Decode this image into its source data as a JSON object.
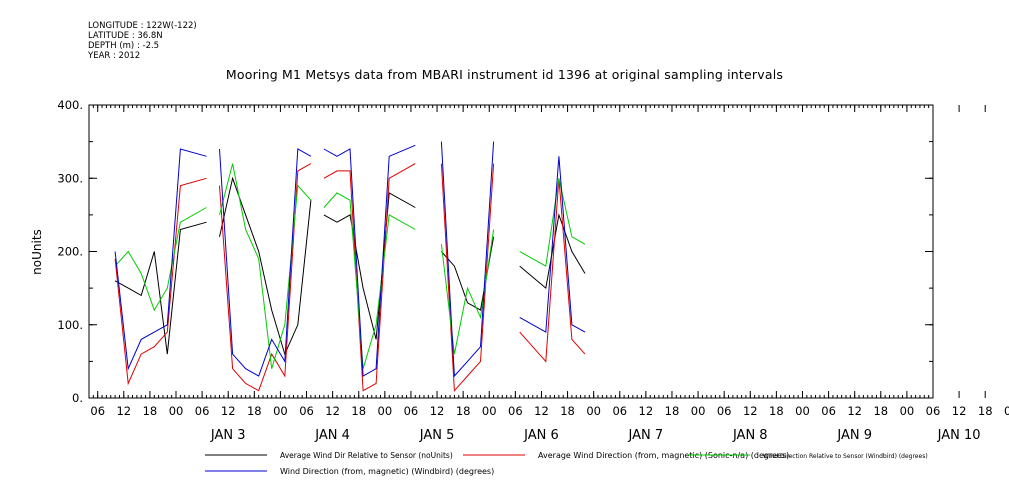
{
  "header": {
    "meta_lines": [
      "LONGITUDE : 122W(-122)",
      "LATITUDE : 36.8N",
      "DEPTH (m) : -2.5",
      "YEAR : 2012"
    ],
    "title": "Mooring M1 Metsys data from MBARI instrument id 1396 at original sampling intervals"
  },
  "chart_data": {
    "type": "line",
    "title": "Mooring M1 Metsys data from MBARI instrument id 1396 at original sampling intervals",
    "ylabel": "noUnits",
    "xlabel": "",
    "ylim": [
      0,
      400
    ],
    "xlim": [
      "2012-01-02T04:00",
      "2012-01-10T06:00"
    ],
    "yticks": [
      "0.",
      "100.",
      "200.",
      "300.",
      "400."
    ],
    "hour_ticks": [
      "06",
      "12",
      "18",
      "00",
      "06",
      "12",
      "18",
      "00",
      "06",
      "12",
      "18",
      "00",
      "06",
      "12",
      "18",
      "00",
      "06",
      "12",
      "18",
      "00",
      "06",
      "12",
      "18",
      "00",
      "06",
      "12",
      "18",
      "00",
      "06",
      "12",
      "18",
      "00",
      "06",
      "12",
      "18",
      "00",
      "06"
    ],
    "day_labels": [
      "JAN  3",
      "JAN  4",
      "JAN  5",
      "JAN  6",
      "JAN  7",
      "JAN  8",
      "JAN  9",
      "JAN 10"
    ],
    "grid": false,
    "legend_position": "bottom",
    "series": [
      {
        "name": "Average Wind Dir Relative to Sensor (noUnits)",
        "color": "#000000",
        "points": [
          [
            6,
            160
          ],
          [
            9,
            150
          ],
          [
            12,
            140
          ],
          [
            15,
            200
          ],
          [
            18,
            60
          ],
          [
            21,
            230
          ],
          [
            27,
            240
          ],
          [
            30,
            220
          ],
          [
            33,
            300
          ],
          [
            36,
            250
          ],
          [
            39,
            200
          ],
          [
            42,
            120
          ],
          [
            45,
            60
          ],
          [
            48,
            100
          ],
          [
            51,
            270
          ],
          [
            54,
            250
          ],
          [
            57,
            240
          ],
          [
            60,
            250
          ],
          [
            63,
            150
          ],
          [
            66,
            80
          ],
          [
            69,
            280
          ],
          [
            75,
            260
          ],
          [
            81,
            200
          ],
          [
            84,
            180
          ],
          [
            87,
            130
          ],
          [
            90,
            120
          ],
          [
            93,
            220
          ],
          [
            99,
            180
          ],
          [
            105,
            150
          ],
          [
            108,
            250
          ],
          [
            111,
            200
          ],
          [
            114,
            170
          ]
        ],
        "gaps_after": [
          6,
          14,
          21,
          26
        ]
      },
      {
        "name": "Average Wind Direction (from, magnetic) (Sonic-n/a) (degrees)",
        "color": "#dd0000",
        "points": [
          [
            6,
            190
          ],
          [
            9,
            20
          ],
          [
            12,
            60
          ],
          [
            15,
            70
          ],
          [
            18,
            90
          ],
          [
            21,
            290
          ],
          [
            27,
            300
          ],
          [
            30,
            290
          ],
          [
            33,
            40
          ],
          [
            36,
            20
          ],
          [
            39,
            10
          ],
          [
            42,
            60
          ],
          [
            45,
            30
          ],
          [
            48,
            310
          ],
          [
            51,
            320
          ],
          [
            54,
            300
          ],
          [
            57,
            310
          ],
          [
            60,
            310
          ],
          [
            63,
            10
          ],
          [
            66,
            20
          ],
          [
            69,
            300
          ],
          [
            75,
            320
          ],
          [
            81,
            320
          ],
          [
            84,
            10
          ],
          [
            87,
            30
          ],
          [
            90,
            50
          ],
          [
            93,
            320
          ],
          [
            99,
            90
          ],
          [
            105,
            50
          ],
          [
            108,
            300
          ],
          [
            111,
            80
          ],
          [
            114,
            60
          ]
        ],
        "gaps_after": [
          6,
          14,
          21,
          26
        ]
      },
      {
        "name": "Wind Direction Relative to Sensor (Windbird) (degrees)",
        "color": "#00cc00",
        "points": [
          [
            6,
            180
          ],
          [
            9,
            200
          ],
          [
            12,
            170
          ],
          [
            15,
            120
          ],
          [
            18,
            150
          ],
          [
            21,
            240
          ],
          [
            27,
            260
          ],
          [
            30,
            250
          ],
          [
            33,
            320
          ],
          [
            36,
            230
          ],
          [
            39,
            190
          ],
          [
            42,
            40
          ],
          [
            45,
            100
          ],
          [
            48,
            290
          ],
          [
            51,
            270
          ],
          [
            54,
            260
          ],
          [
            57,
            280
          ],
          [
            60,
            270
          ],
          [
            63,
            40
          ],
          [
            66,
            100
          ],
          [
            69,
            250
          ],
          [
            75,
            230
          ],
          [
            81,
            210
          ],
          [
            84,
            60
          ],
          [
            87,
            150
          ],
          [
            90,
            110
          ],
          [
            93,
            230
          ],
          [
            99,
            200
          ],
          [
            105,
            180
          ],
          [
            108,
            300
          ],
          [
            111,
            220
          ],
          [
            114,
            210
          ]
        ],
        "gaps_after": [
          6,
          14,
          21,
          26
        ]
      },
      {
        "name": "Wind Direction (from, magnetic) (Windbird) (degrees)",
        "color": "#0000cc",
        "points": [
          [
            6,
            200
          ],
          [
            9,
            40
          ],
          [
            12,
            80
          ],
          [
            15,
            90
          ],
          [
            18,
            100
          ],
          [
            21,
            340
          ],
          [
            27,
            330
          ],
          [
            30,
            340
          ],
          [
            33,
            60
          ],
          [
            36,
            40
          ],
          [
            39,
            30
          ],
          [
            42,
            80
          ],
          [
            45,
            50
          ],
          [
            48,
            340
          ],
          [
            51,
            330
          ],
          [
            54,
            340
          ],
          [
            57,
            330
          ],
          [
            60,
            340
          ],
          [
            63,
            30
          ],
          [
            66,
            40
          ],
          [
            69,
            330
          ],
          [
            75,
            345
          ],
          [
            81,
            350
          ],
          [
            84,
            30
          ],
          [
            87,
            50
          ],
          [
            90,
            70
          ],
          [
            93,
            350
          ],
          [
            99,
            110
          ],
          [
            105,
            90
          ],
          [
            108,
            330
          ],
          [
            111,
            100
          ],
          [
            114,
            90
          ]
        ],
        "gaps_after": [
          6,
          14,
          21,
          26
        ]
      }
    ]
  }
}
